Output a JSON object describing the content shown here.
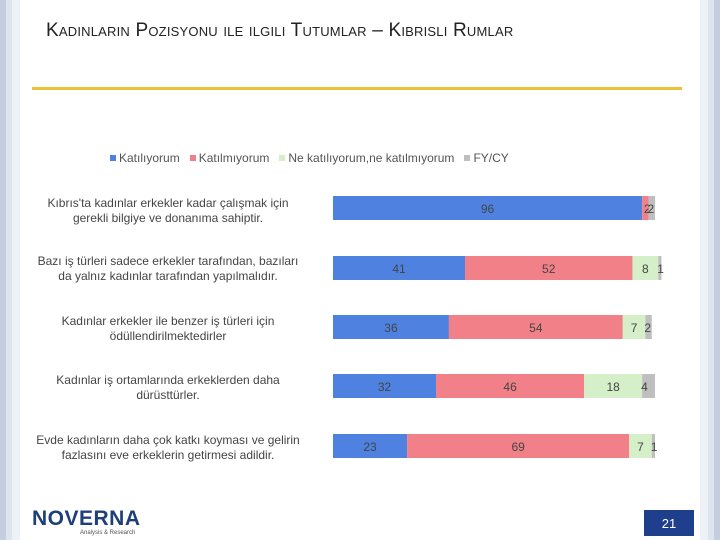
{
  "slide": {
    "title": "Kadınların Pozisyonu ile ilgili Tutumlar – Kıbrıslı Rumlar",
    "page_number": "21",
    "logo_name": "NOVERNA",
    "logo_subtitle": "Analysis & Research"
  },
  "colors": {
    "katiliyorum": "#4f81e0",
    "katilmiyorum": "#f28088",
    "ne": "#d5efc8",
    "fy": "#bfbfbf",
    "title_rule": "#e8c33a",
    "page_box": "#1f3f8c"
  },
  "chart_data": {
    "type": "bar",
    "orientation": "horizontal",
    "stacked": true,
    "legend_position": "top",
    "grid": false,
    "xlim": [
      0,
      100
    ],
    "categories": [
      "Kıbrıs'ta kadınlar erkekler kadar çalışmak için gerekli bilgiye ve donanıma sahiptir.",
      "Bazı iş türleri sadece erkekler tarafından, bazıları da yalnız kadınlar tarafından yapılmalıdır.",
      "Kadınlar erkekler ile benzer iş türleri için ödüllendirilmektedirler",
      "Kadınlar iş ortamlarında erkeklerden daha dürüsttürler.",
      "Evde kadınların daha çok katkı koyması ve gelirin fazlasını eve erkeklerin getirmesi adildir."
    ],
    "category_lines": [
      [
        "Kıbrıs'ta kadınlar erkekler kadar çalışmak için",
        "gerekli bilgiye ve donanıma sahiptir."
      ],
      [
        "Bazı iş türleri sadece erkekler tarafından, bazıları",
        "da yalnız kadınlar tarafından yapılmalıdır."
      ],
      [
        "Kadınlar erkekler ile benzer iş türleri için",
        "ödüllendirilmektedirler"
      ],
      [
        "Kadınlar iş ortamlarında erkeklerden daha",
        "dürüsttürler."
      ],
      [
        "Evde kadınların daha çok katkı koyması ve gelirin",
        "fazlasını eve erkeklerin getirmesi adildir."
      ]
    ],
    "series": [
      {
        "name": "Katılıyorum",
        "values": [
          96,
          41,
          36,
          32,
          23
        ]
      },
      {
        "name": "Katılmıyorum",
        "values": [
          2,
          52,
          54,
          46,
          69
        ]
      },
      {
        "name": "Ne katılıyorum,ne katılmıyorum",
        "values": [
          0,
          8,
          7,
          18,
          7
        ]
      },
      {
        "name": "FY/CY",
        "values": [
          2,
          1,
          2,
          4,
          1
        ]
      }
    ]
  }
}
